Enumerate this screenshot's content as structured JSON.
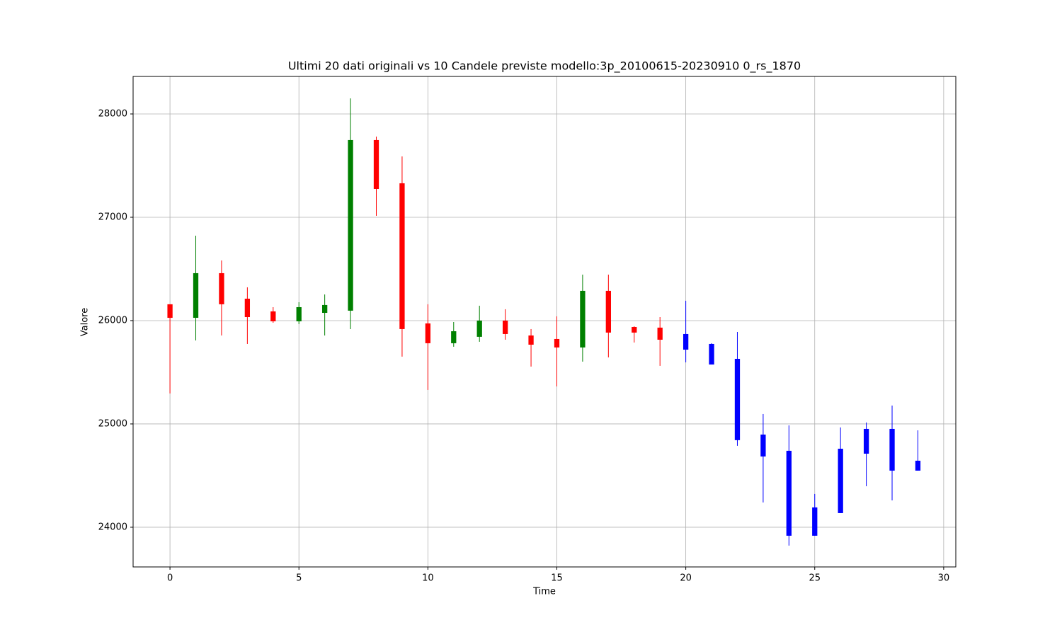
{
  "chart_data": {
    "type": "candlestick",
    "title": "Ultimi 20 dati originali vs 10 Candele previste modello:3p_20100615-20230910 0_rs_1870",
    "x_label": "Time",
    "y_label": "Valore",
    "x": [
      0,
      1,
      2,
      3,
      4,
      5,
      6,
      7,
      8,
      9,
      10,
      11,
      12,
      13,
      14,
      15,
      16,
      17,
      18,
      19,
      20,
      21,
      22,
      23,
      24,
      25,
      26,
      27,
      28,
      29
    ],
    "open": [
      26158,
      26027,
      26459,
      26212,
      26089,
      25993,
      26075,
      26096,
      27747,
      27329,
      25973,
      25781,
      25843,
      26000,
      25856,
      25822,
      25740,
      26288,
      25938,
      25932,
      25870,
      25774,
      25630,
      24897,
      24740,
      24192,
      24760,
      24952,
      24952,
      24644
    ],
    "high": [
      26158,
      26822,
      26582,
      26322,
      26130,
      26178,
      26253,
      28151,
      27781,
      27589,
      26158,
      25986,
      26144,
      26110,
      25918,
      26041,
      26445,
      26445,
      25945,
      26034,
      26192,
      25781,
      25890,
      25096,
      24986,
      24322,
      24966,
      25014,
      25178,
      24938
    ],
    "low": [
      25295,
      25808,
      25856,
      25774,
      25979,
      25966,
      25856,
      25918,
      27014,
      25651,
      25329,
      25747,
      25795,
      25815,
      25555,
      25363,
      25603,
      25644,
      25788,
      25562,
      25596,
      25575,
      24788,
      24240,
      23822,
      23918,
      24137,
      24397,
      24260,
      24548
    ],
    "close": [
      26027,
      26459,
      26158,
      26034,
      25993,
      26130,
      26151,
      27747,
      27274,
      25918,
      25781,
      25897,
      26000,
      25870,
      25767,
      25740,
      26288,
      25884,
      25884,
      25815,
      25719,
      25575,
      24843,
      24685,
      23918,
      23918,
      24137,
      24712,
      24548,
      24548
    ],
    "colors": [
      "#ff0000",
      "#008000",
      "#ff0000",
      "#ff0000",
      "#ff0000",
      "#008000",
      "#008000",
      "#008000",
      "#ff0000",
      "#ff0000",
      "#ff0000",
      "#008000",
      "#008000",
      "#ff0000",
      "#ff0000",
      "#ff0000",
      "#008000",
      "#ff0000",
      "#ff0000",
      "#ff0000",
      "#0000ff",
      "#0000ff",
      "#0000ff",
      "#0000ff",
      "#0000ff",
      "#0000ff",
      "#0000ff",
      "#0000ff",
      "#0000ff",
      "#0000ff"
    ],
    "xlim": [
      -1.43,
      30.47
    ],
    "ylim": [
      23616,
      28363
    ],
    "xticks": [
      0,
      5,
      10,
      15,
      20,
      25,
      30
    ],
    "yticks": [
      24000,
      25000,
      26000,
      27000,
      28000
    ],
    "grid": true
  }
}
